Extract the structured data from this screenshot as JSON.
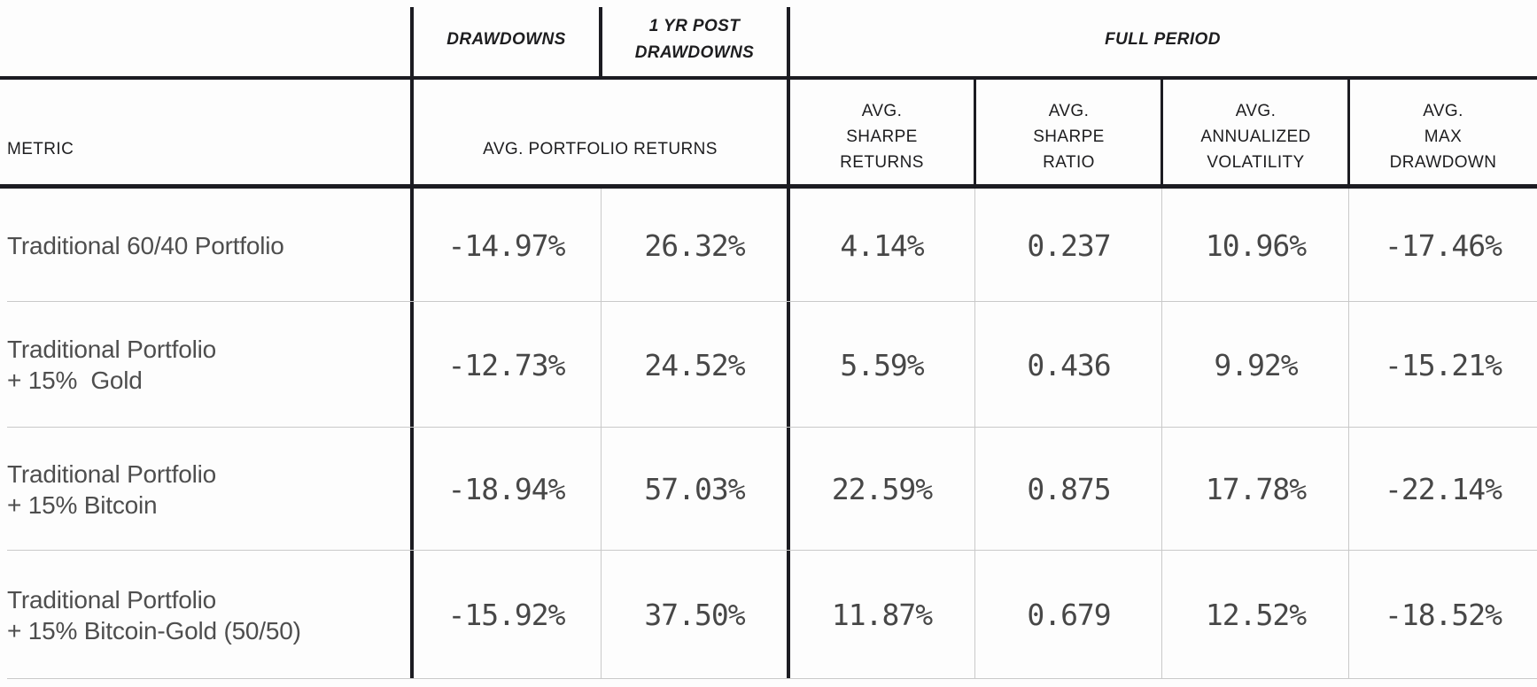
{
  "display": {
    "group_drawdowns": "DRAWDOWNS",
    "group_post": "1 YR POST\nDRAWDOWNS",
    "group_full": "FULL PERIOD",
    "col_metric": "METRIC",
    "col_portfolio_returns": "AVG. PORTFOLIO RETURNS",
    "col_sharpe_returns": "AVG.\nSHARPE\nRETURNS",
    "col_sharpe_ratio": "AVG.\nSHARPE\nRATIO",
    "col_volatility": "AVG.\nANNUALIZED\nVOLATILITY",
    "col_max_drawdown": "AVG.\nMAX\nDRAWDOWN",
    "rows": [
      {
        "label": "Traditional 60/40 Portfolio",
        "values": [
          "-14.97%",
          "26.32%",
          "4.14%",
          "0.237",
          "10.96%",
          "-17.46%"
        ]
      },
      {
        "label": "Traditional Portfolio\n+ 15%  Gold",
        "values": [
          "-12.73%",
          "24.52%",
          "5.59%",
          "0.436",
          "9.92%",
          "-15.21%"
        ]
      },
      {
        "label": "Traditional Portfolio\n+ 15% Bitcoin",
        "values": [
          "-18.94%",
          "57.03%",
          "22.59%",
          "0.875",
          "17.78%",
          "-22.14%"
        ]
      },
      {
        "label": "Traditional Portfolio\n+ 15% Bitcoin-Gold (50/50)",
        "values": [
          "-15.92%",
          "37.50%",
          "11.87%",
          "0.679",
          "12.52%",
          "-18.52%"
        ]
      }
    ],
    "colors": {
      "rule_dark": "#1c1c22",
      "rule_light": "#c9c9c9",
      "header_text": "#1d1d1f",
      "label_text": "#4e4e4e",
      "value_text": "#474747",
      "background": "#fdfdfd"
    }
  },
  "chart_data": {
    "type": "table",
    "title": "",
    "column_groups": [
      {
        "label": "DRAWDOWNS",
        "columns": [
          "AVG. PORTFOLIO RETURNS"
        ]
      },
      {
        "label": "1 YR POST DRAWDOWNS",
        "columns": [
          "AVG. PORTFOLIO RETURNS"
        ]
      },
      {
        "label": "FULL PERIOD",
        "columns": [
          "AVG. SHARPE RETURNS",
          "AVG. SHARPE RATIO",
          "AVG. ANNUALIZED VOLATILITY",
          "AVG. MAX DRAWDOWN"
        ]
      }
    ],
    "columns": [
      "METRIC",
      "AVG. PORTFOLIO RETURNS",
      "AVG. PORTFOLIO RETURNS",
      "AVG. SHARPE RETURNS",
      "AVG. SHARPE RATIO",
      "AVG. ANNUALIZED VOLATILITY",
      "AVG. MAX DRAWDOWN"
    ],
    "rows": [
      [
        "Traditional 60/40 Portfolio",
        "-14.97%",
        "26.32%",
        "4.14%",
        "0.237",
        "10.96%",
        "-17.46%"
      ],
      [
        "Traditional Portfolio + 15% Gold",
        "-12.73%",
        "24.52%",
        "5.59%",
        "0.436",
        "9.92%",
        "-15.21%"
      ],
      [
        "Traditional Portfolio + 15% Bitcoin",
        "-18.94%",
        "57.03%",
        "22.59%",
        "0.875",
        "17.78%",
        "-22.14%"
      ],
      [
        "Traditional Portfolio + 15% Bitcoin-Gold (50/50)",
        "-15.92%",
        "37.50%",
        "11.87%",
        "0.679",
        "12.52%",
        "-18.52%"
      ]
    ]
  }
}
